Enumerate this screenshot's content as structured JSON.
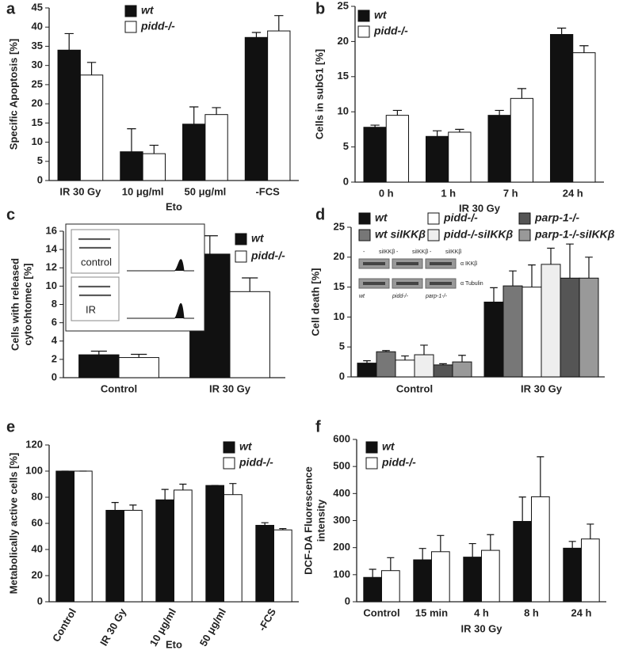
{
  "chart_data": [
    {
      "type": "bar",
      "panel": "a",
      "ylabel": "Specific Apoptosis [%]",
      "xlabel": "Eto",
      "categories": [
        "IR 30 Gy",
        "10 μg/ml",
        "50 μg/ml",
        "-FCS"
      ],
      "ylim": [
        0,
        45
      ],
      "yticks": [
        0,
        5,
        10,
        15,
        20,
        25,
        30,
        35,
        40,
        45
      ],
      "series": [
        {
          "name": "wt",
          "color": "#111111",
          "values": [
            34,
            7.5,
            14.7,
            37.3
          ],
          "errors": [
            4.3,
            6,
            4.5,
            1.3
          ]
        },
        {
          "name": "pidd-/-",
          "color": "#ffffff",
          "values": [
            27.5,
            7,
            17.2,
            39
          ],
          "errors": [
            3.3,
            2.2,
            1.8,
            4
          ]
        }
      ]
    },
    {
      "type": "bar",
      "panel": "b",
      "ylabel": "Cells in subG1 [%]",
      "xlabel": "IR 30 Gy",
      "categories": [
        "0 h",
        "1 h",
        "7 h",
        "24 h"
      ],
      "ylim": [
        0,
        25
      ],
      "yticks": [
        0,
        5,
        10,
        15,
        20,
        25
      ],
      "series": [
        {
          "name": "wt",
          "color": "#111111",
          "values": [
            7.8,
            6.5,
            9.5,
            21
          ],
          "errors": [
            0.3,
            0.8,
            0.7,
            0.9
          ]
        },
        {
          "name": "pidd-/-",
          "color": "#ffffff",
          "values": [
            9.5,
            7.1,
            11.9,
            18.4
          ],
          "errors": [
            0.7,
            0.4,
            1.4,
            1.0
          ]
        }
      ]
    },
    {
      "type": "bar",
      "panel": "c",
      "ylabel": [
        "Cells with released",
        "cytochtomec [%]"
      ],
      "categories": [
        "Control",
        "IR 30 Gy"
      ],
      "ylim": [
        0,
        16
      ],
      "yticks": [
        0,
        2,
        4,
        6,
        8,
        10,
        12,
        14,
        16
      ],
      "inset": {
        "labels": [
          "control",
          "IR"
        ]
      },
      "series": [
        {
          "name": "wt",
          "color": "#111111",
          "values": [
            2.5,
            13.5
          ],
          "errors": [
            0.4,
            2
          ]
        },
        {
          "name": "pidd-/-",
          "color": "#ffffff",
          "values": [
            2.2,
            9.4
          ],
          "errors": [
            0.35,
            1.5
          ]
        }
      ]
    },
    {
      "type": "bar",
      "panel": "d",
      "ylabel": "Cell death [%]",
      "categories": [
        "Control",
        "IR 30 Gy"
      ],
      "ylim": [
        0,
        25
      ],
      "yticks": [
        0,
        5,
        10,
        15,
        20,
        25
      ],
      "blot": {
        "lanes": [
          "-",
          "siIKKβ",
          "-",
          "siIKKβ",
          "-",
          "siIKKβ"
        ],
        "bands": [
          "α IKKβ",
          "α Tubulin"
        ],
        "cell_lines": [
          "wt",
          "pidd-/-",
          "parp-1-/-"
        ]
      },
      "series": [
        {
          "name": "wt",
          "color": "#111111",
          "values": [
            2.3,
            12.5
          ],
          "errors": [
            0.4,
            2.4
          ]
        },
        {
          "name": "wt siIKKβ",
          "color": "#777777",
          "values": [
            4.2,
            15.2
          ],
          "errors": [
            0.2,
            2.5
          ]
        },
        {
          "name": "pidd-/-",
          "color": "#ffffff",
          "values": [
            2.8,
            15
          ],
          "errors": [
            0.7,
            3.7
          ]
        },
        {
          "name": "pidd-/-siIKKβ",
          "color": "#eeeeee",
          "values": [
            3.7,
            18.8
          ],
          "errors": [
            1.6,
            2.7
          ]
        },
        {
          "name": "parp-1-/-",
          "color": "#555555",
          "values": [
            2,
            16.5
          ],
          "errors": [
            0.2,
            5.7
          ]
        },
        {
          "name": "parp-1-/-siIKKβ",
          "color": "#999999",
          "values": [
            2.5,
            16.5
          ],
          "errors": [
            1.1,
            3.5
          ]
        }
      ]
    },
    {
      "type": "bar",
      "panel": "e",
      "ylabel": "Metabolically active cells [%]",
      "xlabel": "Eto",
      "categories": [
        "Control",
        "IR 30 Gy",
        "10 μg/ml",
        "50 μg/ml",
        "-FCS"
      ],
      "ylim": [
        0,
        120
      ],
      "yticks": [
        0,
        20,
        40,
        60,
        80,
        100,
        120
      ],
      "series": [
        {
          "name": "wt",
          "color": "#111111",
          "values": [
            100,
            70,
            78,
            89,
            58.5
          ],
          "errors": [
            0,
            6,
            8,
            0,
            2
          ]
        },
        {
          "name": "pidd-/-",
          "color": "#ffffff",
          "values": [
            100,
            70,
            85.5,
            82,
            55
          ],
          "errors": [
            0,
            4,
            4.5,
            8.5,
            1
          ]
        }
      ]
    },
    {
      "type": "bar",
      "panel": "f",
      "ylabel": [
        "DCF-DA Fluorescence",
        "intensity"
      ],
      "xlabel": "IR 30 Gy",
      "categories": [
        "Control",
        "15 min",
        "4 h",
        "8 h",
        "24 h"
      ],
      "ylim": [
        0,
        600
      ],
      "yticks": [
        0,
        100,
        200,
        300,
        400,
        500,
        600
      ],
      "series": [
        {
          "name": "wt",
          "color": "#111111",
          "values": [
            90,
            155,
            165,
            297,
            198
          ],
          "errors": [
            30,
            42,
            50,
            90,
            25
          ]
        },
        {
          "name": "pidd-/-",
          "color": "#ffffff",
          "values": [
            115,
            185,
            190,
            388,
            232
          ],
          "errors": [
            48,
            60,
            58,
            148,
            55
          ]
        }
      ]
    }
  ]
}
